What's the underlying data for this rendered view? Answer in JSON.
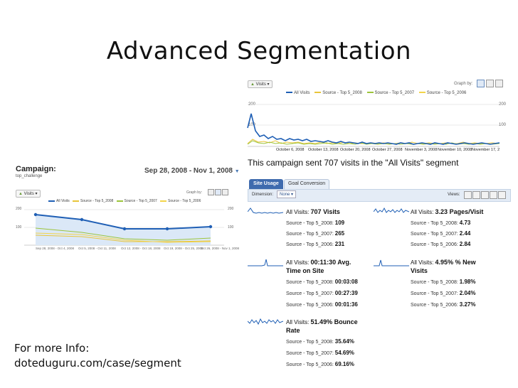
{
  "slide": {
    "title": "Advanced Segmentation",
    "footer_line1": "For more Info:",
    "footer_line2": "doteduguru.com/case/segment"
  },
  "left_shot": {
    "campaign_label": "Campaign:",
    "campaign_name": "top_challenge",
    "date_range": "Sep 28, 2008 - Nov 1, 2008",
    "metric_select": "Visits",
    "legend": [
      {
        "label": "All Visits",
        "color": "#1f5fb5"
      },
      {
        "label": "Source - Top 5_2008",
        "color": "#e8c53a"
      },
      {
        "label": "Source - Top 5_2007",
        "color": "#9cc43b"
      },
      {
        "label": "Source - Top 5_2006",
        "color": "#f3d44a"
      }
    ],
    "graph_by": "Graph by:",
    "y_top": "200",
    "y_mid": "100",
    "y_top_right": "200",
    "y_mid_right": "100",
    "x_ticks": [
      "Sep 28, 2008 - Oct 4, 2008",
      "Oct 5, 2008 - Oct 11, 2008",
      "Oct 12, 2008 - Oct 18, 2008",
      "Oct 19, 2008 - Oct 25, 2008",
      "Oct 26, 2008 - Nov 1, 2008"
    ]
  },
  "right_shot": {
    "metric_select": "Visits",
    "legend": [
      {
        "label": "All Visits",
        "color": "#1f5fb5"
      },
      {
        "label": "Source - Top 5_2008",
        "color": "#e8c53a"
      },
      {
        "label": "Source - Top 5_2007",
        "color": "#9cc43b"
      },
      {
        "label": "Source - Top 5_2006",
        "color": "#f3d44a"
      }
    ],
    "graph_by": "Graph by:",
    "y_top": "200",
    "y_mid": "100",
    "y_top_right": "200",
    "y_mid_right": "100",
    "x_ticks": [
      "October 6, 2008",
      "October 13, 2008",
      "October 20, 2008",
      "October 27, 2008",
      "November 3, 2008",
      "November 10, 2008",
      "November 17, 2"
    ],
    "heading": "This campaign sent 707 visits in the \"All Visits\" segment",
    "tabs": [
      "Site Usage",
      "Goal Conversion"
    ],
    "dimension_label": "Dimension:",
    "dimension_value": "None",
    "views_label": "Views:",
    "metrics": [
      {
        "head_prefix": "All Visits:",
        "head_value": "707 Visits",
        "rows": [
          {
            "label": "Source - Top 5_2008:",
            "value": "109"
          },
          {
            "label": "Source - Top 5_2007:",
            "value": "265"
          },
          {
            "label": "Source - Top 5_2006:",
            "value": "231"
          }
        ]
      },
      {
        "head_prefix": "All Visits:",
        "head_value": "3.23 Pages/Visit",
        "rows": [
          {
            "label": "Source - Top 5_2008:",
            "value": "4.73"
          },
          {
            "label": "Source - Top 5_2007:",
            "value": "2.44"
          },
          {
            "label": "Source - Top 5_2006:",
            "value": "2.84"
          }
        ]
      },
      {
        "head_prefix": "All Visits:",
        "head_value": "00:11:30 Avg.",
        "head_value2": "Time on Site",
        "rows": [
          {
            "label": "Source - Top 5_2008:",
            "value": "00:03:08"
          },
          {
            "label": "Source - Top 5_2007:",
            "value": "00:27:39"
          },
          {
            "label": "Source - Top 5_2006:",
            "value": "00:01:36"
          }
        ]
      },
      {
        "head_prefix": "All Visits:",
        "head_value": "4.95% % New",
        "head_value2": "Visits",
        "rows": [
          {
            "label": "Source - Top 5_2008:",
            "value": "1.98%"
          },
          {
            "label": "Source - Top 5_2007:",
            "value": "2.04%"
          },
          {
            "label": "Source - Top 5_2006:",
            "value": "3.27%"
          }
        ]
      },
      {
        "head_prefix": "All Visits:",
        "head_value": "51.49% Bounce",
        "head_value2": "Rate",
        "rows": [
          {
            "label": "Source - Top 5_2008:",
            "value": "35.64%"
          },
          {
            "label": "Source - Top 5_2007:",
            "value": "54.69%"
          },
          {
            "label": "Source - Top 5_2006:",
            "value": "69.16%"
          }
        ]
      }
    ]
  }
}
